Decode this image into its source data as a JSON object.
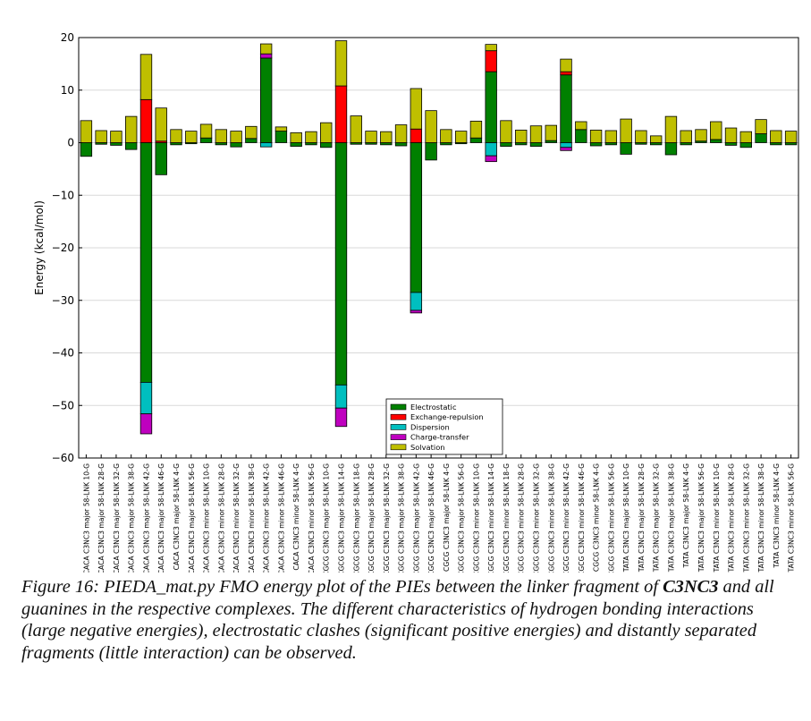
{
  "caption": {
    "prefix": "Figure 16: PIEDA_mat.py FMO energy plot of the PIEs between the linker fragment of ",
    "bold": "C3NC3",
    "suffix": " and all guanines in the respective complexes. The different characteristics of hydrogen bonding interactions (large negative energies), electrostatic clashes (significant positive energies) and distantly separated fragments (little interaction) can be observed."
  },
  "chart_data": {
    "type": "bar",
    "stacked": true,
    "title": "",
    "xlabel": "",
    "ylabel": "Energy (kcal/mol)",
    "ylim": [
      -60,
      20
    ],
    "yticks": [
      -60,
      -50,
      -40,
      -30,
      -20,
      -10,
      0,
      10,
      20
    ],
    "grid": true,
    "legend_position": "lower-center",
    "categories": [
      "CACA C3NC3 major 58-LNK 10-G",
      "CACA C3NC3 major 58-LNK 28-G",
      "CACA C3NC3 major 58-LNK 32-G",
      "CACA C3NC3 major 58-LNK 38-G",
      "CACA C3NC3 major 58-LNK 42-G",
      "CACA C3NC3 major 58-LNK 46-G",
      "CACA C3NC3 major 58-LNK 4-G",
      "CACA C3NC3 major 58-LNK 56-G",
      "CACA C3NC3 minor 58-LNK 10-G",
      "CACA C3NC3 minor 58-LNK 28-G",
      "CACA C3NC3 minor 58-LNK 32-G",
      "CACA C3NC3 minor 58-LNK 38-G",
      "CACA C3NC3 minor 58-LNK 42-G",
      "CACA C3NC3 minor 58-LNK 46-G",
      "CACA C3NC3 minor 58-LNK 4-G",
      "CACA C3NC3 minor 58-LNK 56-G",
      "CGCG C3NC3 major 58-LNK 10-G",
      "CGCG C3NC3 major 58-LNK 14-G",
      "CGCG C3NC3 major 58-LNK 18-G",
      "CGCG C3NC3 major 58-LNK 28-G",
      "CGCG C3NC3 major 58-LNK 32-G",
      "CGCG C3NC3 major 58-LNK 38-G",
      "CGCG C3NC3 major 58-LNK 42-G",
      "CGCG C3NC3 major 58-LNK 46-G",
      "CGCG C3NC3 major 58-LNK 4-G",
      "CGCG C3NC3 major 58-LNK 56-G",
      "CGCG C3NC3 minor 58-LNK 10-G",
      "CGCG C3NC3 minor 58-LNK 14-G",
      "CGCG C3NC3 minor 58-LNK 18-G",
      "CGCG C3NC3 minor 58-LNK 28-G",
      "CGCG C3NC3 minor 58-LNK 32-G",
      "CGCG C3NC3 minor 58-LNK 38-G",
      "CGCG C3NC3 minor 58-LNK 42-G",
      "CGCG C3NC3 minor 58-LNK 46-G",
      "CGCG C3NC3 minor 58-LNK 4-G",
      "CGCG C3NC3 minor 58-LNK 56-G",
      "TATA C3NC3 major 58-LNK 10-G",
      "TATA C3NC3 major 58-LNK 28-G",
      "TATA C3NC3 major 58-LNK 32-G",
      "TATA C3NC3 major 58-LNK 38-G",
      "TATA C3NC3 major 58-LNK 4-G",
      "TATA C3NC3 major 58-LNK 56-G",
      "TATA C3NC3 minor 58-LNK 10-G",
      "TATA C3NC3 minor 58-LNK 28-G",
      "TATA C3NC3 minor 58-LNK 32-G",
      "TATA C3NC3 minor 58-LNK 38-G",
      "TATA C3NC3 minor 58-LNK 4-G",
      "TATA C3NC3 minor 58-LNK 56-G"
    ],
    "series": [
      {
        "name": "Electrostatic",
        "color": "#008000",
        "values": [
          -2.6,
          -0.3,
          -0.5,
          -1.3,
          -45.6,
          -6.1,
          -0.4,
          -0.2,
          0.9,
          -0.4,
          -0.8,
          0.8,
          16.1,
          2.2,
          -0.7,
          -0.4,
          -0.9,
          -46.1,
          -0.3,
          -0.3,
          -0.4,
          -0.6,
          -28.5,
          -3.3,
          -0.4,
          -0.2,
          0.9,
          13.5,
          -0.7,
          -0.4,
          -0.7,
          0.4,
          12.9,
          2.5,
          -0.6,
          -0.4,
          -2.2,
          -0.3,
          -0.4,
          -2.3,
          -0.4,
          0.3,
          0.6,
          -0.5,
          -0.9,
          1.7,
          -0.4,
          -0.4
        ]
      },
      {
        "name": "Exchange-repulsion",
        "color": "#ff0000",
        "values": [
          0,
          0,
          0,
          0,
          8.2,
          0.3,
          0,
          0,
          0,
          0,
          0,
          0,
          0,
          0,
          0,
          0,
          0,
          10.8,
          0,
          0,
          0,
          0,
          2.6,
          0,
          0,
          0,
          0,
          4.0,
          0,
          0,
          0,
          0,
          0.6,
          0,
          0,
          0,
          0,
          0,
          0,
          0,
          0,
          0,
          0,
          0,
          0,
          0,
          0,
          0
        ]
      },
      {
        "name": "Dispersion",
        "color": "#00bfbf",
        "values": [
          0,
          0,
          0,
          0,
          -6.0,
          0,
          0,
          0,
          0,
          0,
          0,
          0,
          -0.8,
          0,
          0,
          0,
          0,
          -4.4,
          0,
          0,
          0,
          0,
          -3.4,
          0,
          0,
          0,
          0,
          -2.5,
          0,
          0,
          0,
          0,
          -0.9,
          0,
          0,
          0,
          0,
          0,
          0,
          0,
          0,
          0,
          0,
          0,
          0,
          0,
          0,
          0
        ]
      },
      {
        "name": "Charge-transfer",
        "color": "#bf00bf",
        "values": [
          0,
          0,
          0,
          0,
          -3.8,
          0,
          0,
          0,
          0,
          0,
          0,
          0,
          0.8,
          0,
          0,
          0,
          0,
          -3.5,
          0,
          0,
          0,
          0,
          -0.5,
          0,
          0,
          0,
          0,
          -1.1,
          0,
          0,
          0,
          0,
          -0.6,
          0,
          0,
          0,
          0,
          0,
          0,
          0,
          0,
          0,
          0,
          0,
          0,
          0,
          0,
          0
        ]
      },
      {
        "name": "Solvation",
        "color": "#bfbf00",
        "values": [
          4.2,
          2.3,
          2.2,
          5.0,
          8.6,
          6.3,
          2.5,
          2.2,
          2.6,
          2.5,
          2.2,
          2.3,
          1.9,
          0.8,
          1.9,
          2.1,
          3.8,
          8.6,
          5.1,
          2.2,
          2.1,
          3.4,
          7.7,
          6.1,
          2.5,
          2.2,
          3.2,
          1.2,
          4.2,
          2.4,
          3.2,
          2.9,
          2.4,
          1.5,
          2.4,
          2.3,
          4.5,
          2.3,
          1.3,
          5.0,
          2.3,
          2.2,
          3.4,
          2.8,
          2.1,
          2.7,
          2.3,
          2.2
        ]
      }
    ]
  }
}
